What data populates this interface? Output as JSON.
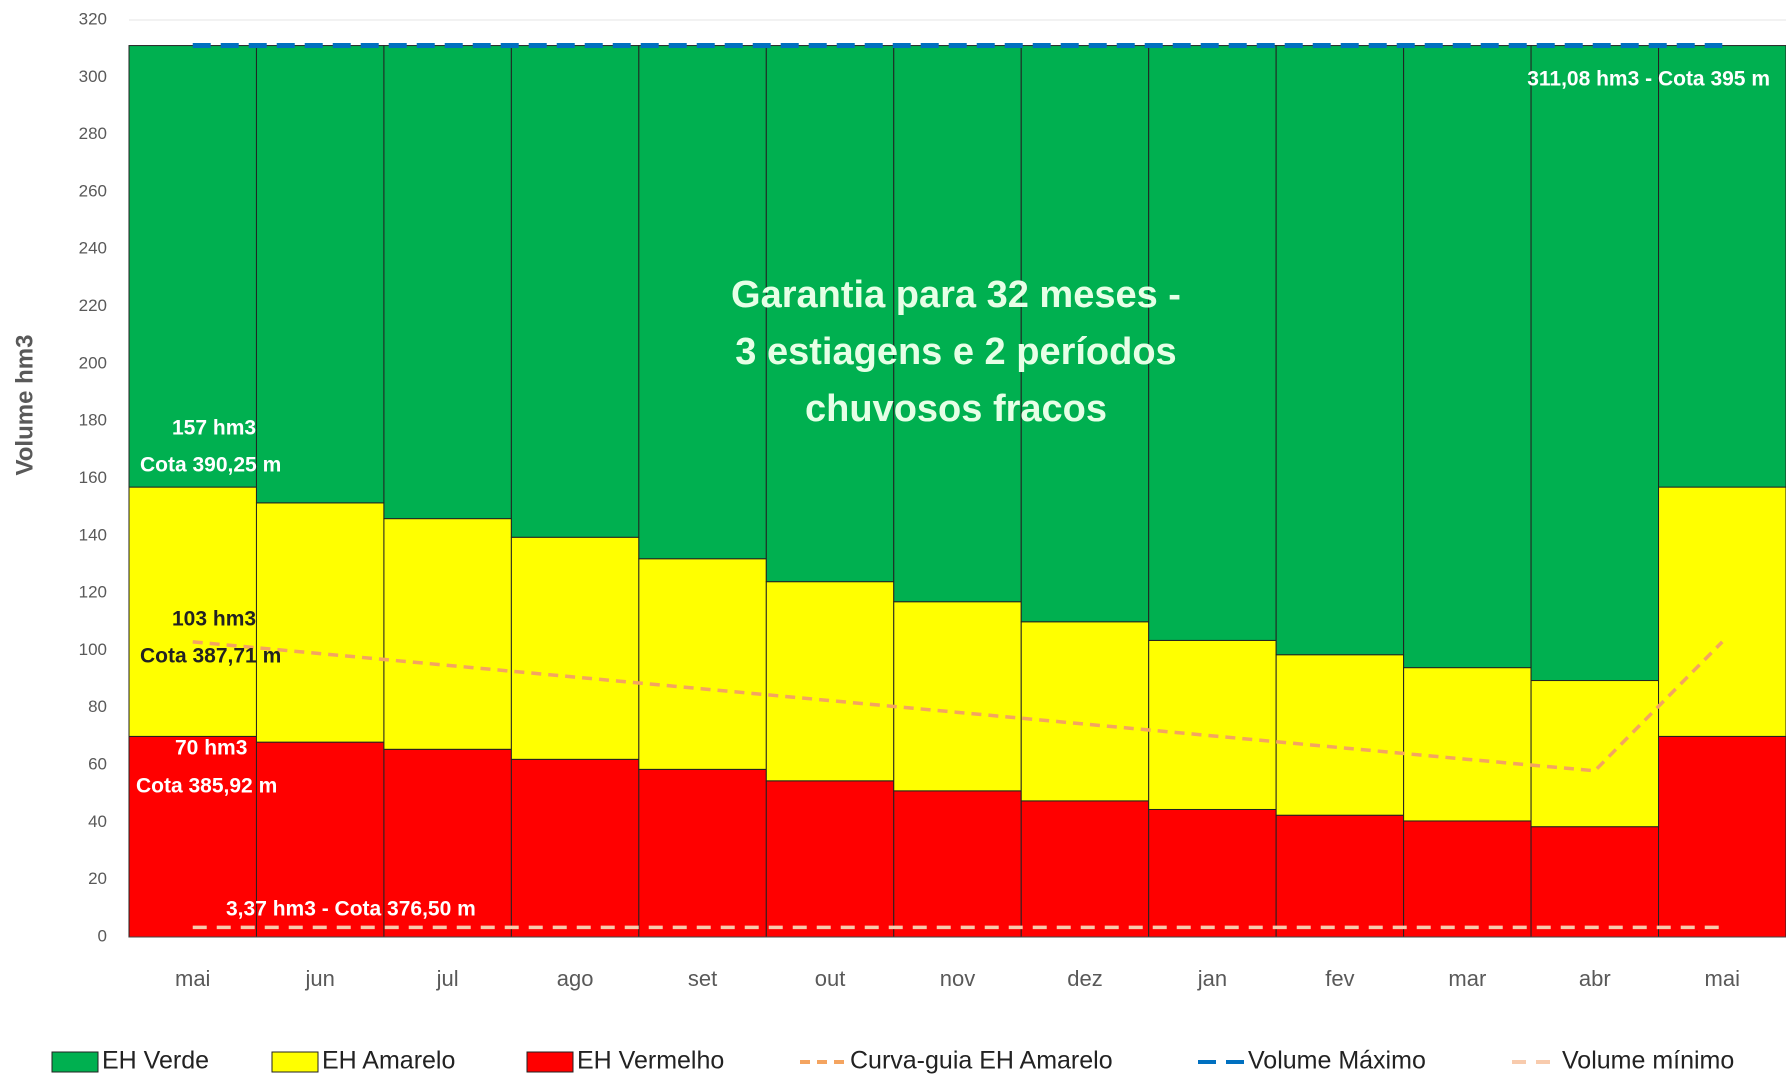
{
  "chart_data": {
    "type": "bar",
    "stacked": true,
    "y_label": "Volume hm3",
    "categories": [
      "mai",
      "jun",
      "jul",
      "ago",
      "set",
      "out",
      "nov",
      "dez",
      "jan",
      "fev",
      "mar",
      "abr",
      "mai"
    ],
    "ylim": [
      0,
      320
    ],
    "yticks": [
      0,
      20,
      40,
      60,
      80,
      100,
      120,
      140,
      160,
      180,
      200,
      220,
      240,
      260,
      280,
      300,
      320
    ],
    "series": [
      {
        "name": "EH Verde",
        "type": "bar",
        "color": "#00b050",
        "values": [
          154.08,
          159.58,
          165.08,
          171.58,
          179.08,
          187.08,
          194.08,
          201.08,
          207.58,
          212.58,
          217.08,
          221.58,
          154.08
        ]
      },
      {
        "name": "EH Amarelo",
        "type": "bar",
        "color": "#ffff00",
        "values": [
          87,
          83.5,
          80.5,
          77.5,
          73.5,
          69.5,
          66,
          62.5,
          59,
          56,
          53.5,
          51,
          87
        ]
      },
      {
        "name": "EH Vermelho",
        "type": "bar",
        "color": "#ff0000",
        "values": [
          70,
          68,
          65.5,
          62,
          58.5,
          54.5,
          51,
          47.5,
          44.5,
          42.5,
          40.5,
          38.5,
          70
        ]
      },
      {
        "name": "Curva-guia EH Amarelo",
        "type": "line",
        "color": "#f4a460",
        "values": [
          103,
          98.9,
          94.8,
          90.7,
          86.6,
          82.5,
          78.4,
          74.3,
          70.2,
          66.1,
          62,
          58,
          103
        ]
      },
      {
        "name": "Volume Máximo",
        "type": "line",
        "color": "#0070c0",
        "values": [
          311.08,
          311.08,
          311.08,
          311.08,
          311.08,
          311.08,
          311.08,
          311.08,
          311.08,
          311.08,
          311.08,
          311.08,
          311.08
        ]
      },
      {
        "name": "Volume mínimo",
        "type": "line",
        "color": "#f8cbad",
        "values": [
          3.37,
          3.37,
          3.37,
          3.37,
          3.37,
          3.37,
          3.37,
          3.37,
          3.37,
          3.37,
          3.37,
          3.37,
          3.37
        ]
      }
    ],
    "annotations": [
      "157 hm3",
      "Cota 390,25 m",
      "103 hm3",
      "Cota 387,71 m",
      "70 hm3",
      "Cota 385,92 m",
      "3,37 hm3 - Cota 376,50 m",
      "311,08 hm3 - Cota 395 m"
    ],
    "center_text": [
      "Garantia para 32 meses -",
      "3 estiagens e 2 períodos",
      "chuvosos fracos"
    ]
  }
}
